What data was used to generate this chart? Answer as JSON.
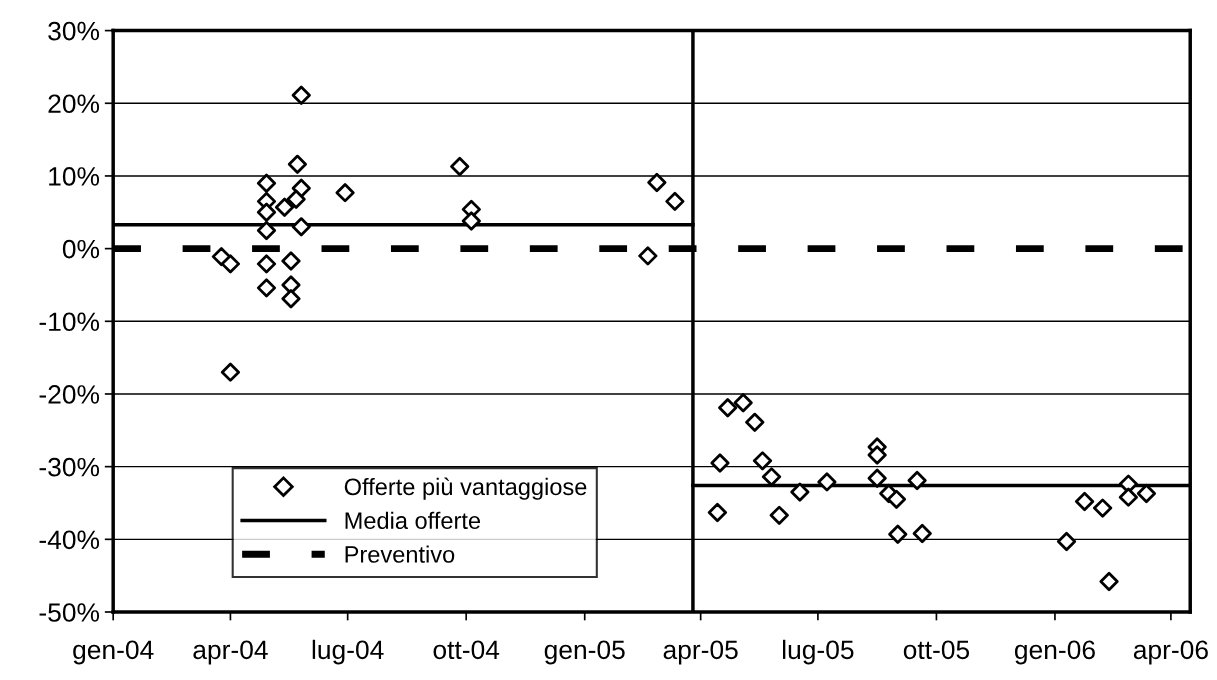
{
  "chart_data": {
    "type": "scatter",
    "xlim": [
      "2004-01-01",
      "2006-04-16"
    ],
    "xticks": [
      {
        "value": "2004-01-01",
        "label": "gen-04"
      },
      {
        "value": "2004-04-01",
        "label": "apr-04"
      },
      {
        "value": "2004-07-01",
        "label": "lug-04"
      },
      {
        "value": "2004-10-01",
        "label": "ott-04"
      },
      {
        "value": "2005-01-01",
        "label": "gen-05"
      },
      {
        "value": "2005-04-01",
        "label": "apr-05"
      },
      {
        "value": "2005-07-01",
        "label": "lug-05"
      },
      {
        "value": "2005-10-01",
        "label": "ott-05"
      },
      {
        "value": "2006-01-01",
        "label": "gen-06"
      },
      {
        "value": "2006-04-01",
        "label": "apr-06"
      }
    ],
    "ylim": [
      -50,
      30
    ],
    "yticks": [
      {
        "value": -50,
        "label": "-50%"
      },
      {
        "value": -40,
        "label": "-40%"
      },
      {
        "value": -30,
        "label": "-30%"
      },
      {
        "value": -20,
        "label": "-20%"
      },
      {
        "value": -10,
        "label": "-10%"
      },
      {
        "value": 0,
        "label": "0%"
      },
      {
        "value": 10,
        "label": "10%"
      },
      {
        "value": 20,
        "label": "20%"
      },
      {
        "value": 30,
        "label": "30%"
      }
    ],
    "grid": "y",
    "legend": "bottom left",
    "series": [
      {
        "name": "Offerte più vantaggiose",
        "marker": "diamond",
        "color": "#000000",
        "x": [
          "2004-05-26",
          "2004-05-23",
          "2004-04-29",
          "2004-04-29",
          "2004-04-29",
          "2004-04-29",
          "2004-05-26",
          "2004-05-22",
          "2004-05-13",
          "2004-05-26",
          "2004-06-29",
          "2004-03-25",
          "2004-04-01",
          "2004-04-29",
          "2004-05-18",
          "2004-04-29",
          "2004-05-18",
          "2004-05-18",
          "2004-04-01",
          "2004-09-26",
          "2004-10-05",
          "2004-10-05",
          "2005-02-26",
          "2005-03-12",
          "2005-02-19",
          "2005-04-14",
          "2005-04-16",
          "2005-04-22",
          "2005-05-04",
          "2005-05-13",
          "2005-05-19",
          "2005-05-26",
          "2005-06-01",
          "2005-06-17",
          "2005-07-08",
          "2005-08-16",
          "2005-08-16",
          "2005-08-16",
          "2005-08-25",
          "2005-08-31",
          "2005-09-16",
          "2005-09-01",
          "2005-09-20",
          "2006-02-27",
          "2006-02-27",
          "2006-03-13",
          "2006-01-24",
          "2006-02-07",
          "2006-01-10",
          "2006-02-12"
        ],
        "values": [
          21.1,
          11.6,
          9.0,
          6.5,
          5.0,
          2.5,
          8.3,
          6.8,
          5.7,
          3.0,
          7.7,
          -1.1,
          -2.1,
          -2.1,
          -1.7,
          -5.4,
          -5.0,
          -6.9,
          -17.0,
          11.3,
          5.4,
          3.8,
          9.1,
          6.5,
          -1.0,
          -36.3,
          -29.5,
          -21.9,
          -21.2,
          -23.9,
          -29.2,
          -31.4,
          -36.7,
          -33.5,
          -32.1,
          -27.3,
          -28.4,
          -31.6,
          -33.7,
          -34.5,
          -31.9,
          -39.3,
          -39.2,
          -32.4,
          -34.2,
          -33.7,
          -34.8,
          -35.7,
          -40.3,
          -45.8
        ]
      },
      {
        "name": "Media offerte",
        "type": "line",
        "line_style": "solid",
        "color": "#000000",
        "x": [
          "2004-01-01",
          "2005-03-26"
        ],
        "values": [
          3.3,
          3.3
        ]
      },
      {
        "type": "line",
        "line_style": "solid",
        "color": "#000000",
        "x": [
          "2005-03-26",
          "2006-04-16"
        ],
        "values": [
          -32.6,
          -32.6
        ]
      }
    ],
    "ref_lines": [
      {
        "axis": "y",
        "value": 0,
        "label": "Preventivo",
        "line_style": "dashed",
        "color": "#000000"
      },
      {
        "axis": "x",
        "value": "2005-03-26",
        "label": null,
        "color": "#000000"
      }
    ]
  }
}
